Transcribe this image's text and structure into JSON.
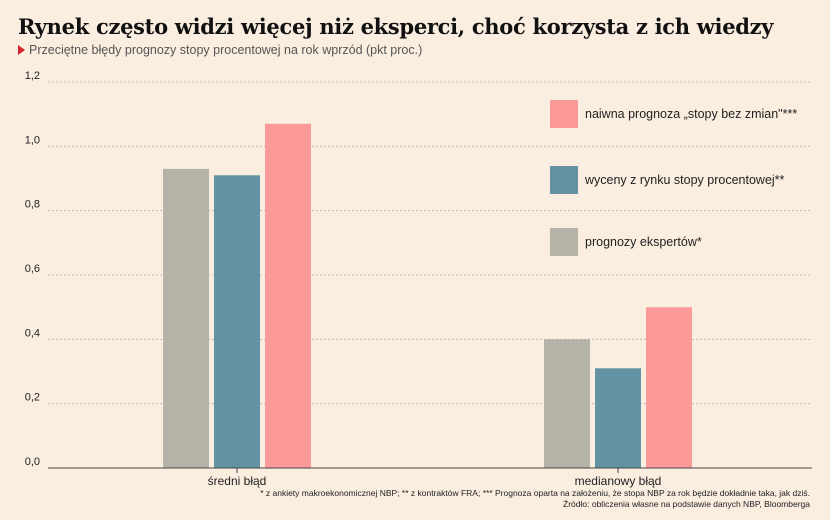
{
  "title": "Rynek często widzi więcej niż eksperci, choć korzysta z ich wiedzy",
  "subtitle": "Przeciętne błędy prognozy stopy procentowej na rok wprzód (pkt proc.)",
  "footnote": "* z ankiety makroekonomicznej NBP; ** z kontraktów FRA; *** Prognoza oparta na założeniu, że stopa NBP za rok będzie dokładnie taka, jak dziś.",
  "source": "Źródło: obliczenia własne na podstawie danych NBP, Bloomberga",
  "colors": {
    "background": "#faeee1",
    "accent": "#d8222a"
  },
  "chart_data": {
    "type": "bar",
    "categories": [
      "średni błąd",
      "medianowy błąd"
    ],
    "series": [
      {
        "name": "prognozy ekspertów*",
        "color": "#b5b3a8",
        "values": [
          0.93,
          0.4
        ]
      },
      {
        "name": "wyceny z rynku stopy procentowej**",
        "color": "#6393a3",
        "values": [
          0.91,
          0.31
        ]
      },
      {
        "name": "naiwna prognoza „stopy bez zmian\"***",
        "color": "#fc9a9a",
        "values": [
          1.07,
          0.5
        ]
      }
    ],
    "legend_order": [
      2,
      1,
      0
    ],
    "yticks": [
      "0,0",
      "0,2",
      "0,4",
      "0,6",
      "0,8",
      "1,0",
      "1,2"
    ],
    "ylim": [
      0,
      1.2
    ],
    "grid": true,
    "legend_position": "top-right"
  }
}
